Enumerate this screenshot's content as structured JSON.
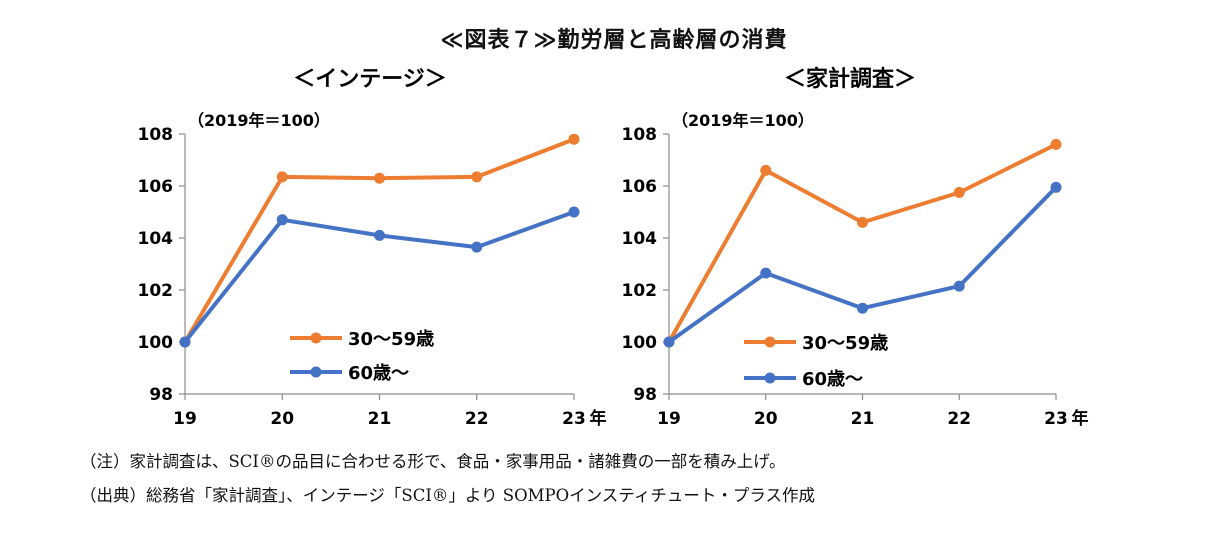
{
  "figure_title": "≪図表７≫勤労層と高齢層の消費",
  "notes": [
    "（注）家計調査は、SCI®の品目に合わせる形で、食品・家事用品・諸雑費の一部を積み上げ。",
    "（出典）総務省「家計調査」、インテージ「SCI®」より SOMPOインスティチュート・プラス作成"
  ],
  "colors": {
    "orange": "#ED7D31",
    "blue": "#4472C4"
  },
  "chart_data": [
    {
      "type": "line",
      "title": "＜インテージ＞",
      "unit_note": "（2019年＝100）",
      "x": [
        "19",
        "20",
        "21",
        "22",
        "23"
      ],
      "x_suffix": "年",
      "ylim": [
        98,
        108
      ],
      "yticks": [
        "98",
        "100",
        "102",
        "104",
        "106",
        "108"
      ],
      "grid": false,
      "legend_position": "lower-center",
      "series": [
        {
          "name": "30～59歳",
          "color": "#ED7D31",
          "values": [
            100,
            106.35,
            106.3,
            106.35,
            107.8
          ]
        },
        {
          "name": "60歳～",
          "color": "#4472C4",
          "values": [
            100,
            104.7,
            104.1,
            103.65,
            105.0
          ]
        }
      ]
    },
    {
      "type": "line",
      "title": "＜家計調査＞",
      "unit_note": "（2019年＝100）",
      "x": [
        "19",
        "20",
        "21",
        "22",
        "23"
      ],
      "x_suffix": "年",
      "ylim": [
        98,
        108
      ],
      "yticks": [
        "98",
        "100",
        "102",
        "104",
        "106",
        "108"
      ],
      "grid": false,
      "legend_position": "lower-center",
      "series": [
        {
          "name": "30～59歳",
          "color": "#ED7D31",
          "values": [
            100,
            106.6,
            104.6,
            105.75,
            107.6
          ]
        },
        {
          "name": "60歳～",
          "color": "#4472C4",
          "values": [
            100,
            102.65,
            101.3,
            102.15,
            105.95
          ]
        }
      ]
    }
  ]
}
